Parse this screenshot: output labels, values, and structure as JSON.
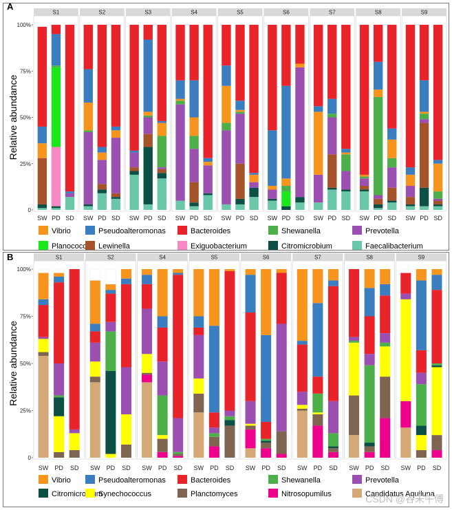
{
  "figure": {
    "watermark": "CSDN @谷未午傅"
  },
  "colors": {
    "Vibrio": "#f7941d",
    "Pseudoalteromonas": "#3b7ebf",
    "Bacteroides": "#e8232a",
    "Shewanella": "#4daf4a",
    "Prevotella": "#9b4fb0",
    "Planococcus": "#1be81b",
    "Lewinella": "#a5532a",
    "Exiguobacterium": "#f589c4",
    "Citromicrobium": "#0b4f45",
    "Faecalibacterium": "#6bc7a9",
    "Synechococcus": "#ffff00",
    "Planctomyces": "#7d6552",
    "Nitrosopumilus": "#ec008c",
    "Candidatus Aquiluna": "#d4a977",
    "Other": "#ffffff"
  },
  "chart_data": [
    {
      "type": "bar",
      "stacked": true,
      "panel_label": "A",
      "ylabel": "Relative  abundance",
      "yticks": [
        "0",
        "25%",
        "50%",
        "75%",
        "100%"
      ],
      "ylim": [
        0,
        100
      ],
      "facets": [
        "S1",
        "S2",
        "S3",
        "S4",
        "S5",
        "S6",
        "S7",
        "S8",
        "S9"
      ],
      "categories": [
        "SW",
        "PD",
        "SD"
      ],
      "legend": [
        [
          "Vibrio",
          "Pseudoalteromonas",
          "Bacteroides",
          "Shewanella",
          "Prevotella"
        ],
        [
          "Planococcus",
          "Lewinella",
          "Exiguobacterium",
          "Citromicrobium",
          "Faecalibacterium"
        ]
      ],
      "legend_placement": "bottom",
      "stack_order": [
        "Faecalibacterium",
        "Citromicrobium",
        "Exiguobacterium",
        "Lewinella",
        "Planococcus",
        "Prevotella",
        "Shewanella",
        "Vibrio",
        "Pseudoalteromonas",
        "Bacteroides"
      ],
      "bars": [
        {
          "facet": "S1",
          "sample": "SW",
          "values": {
            "Faecalibacterium": 1,
            "Citromicrobium": 2,
            "Lewinella": 25,
            "Vibrio": 8,
            "Pseudoalteromonas": 9,
            "Bacteroides": 54
          }
        },
        {
          "facet": "S1",
          "sample": "PD",
          "values": {
            "Faecalibacterium": 1,
            "Citromicrobium": 1,
            "Exiguobacterium": 32,
            "Planococcus": 43,
            "Shewanella": 1,
            "Pseudoalteromonas": 17,
            "Bacteroides": 5
          }
        },
        {
          "facet": "S1",
          "sample": "SD",
          "values": {
            "Faecalibacterium": 7,
            "Prevotella": 2,
            "Pseudoalteromonas": 1,
            "Bacteroides": 90
          }
        },
        {
          "facet": "S2",
          "sample": "SW",
          "values": {
            "Faecalibacterium": 2,
            "Citromicrobium": 1,
            "Vibrio": 15,
            "Prevotella": 39,
            "Shewanella": 1,
            "Pseudoalteromonas": 18,
            "Bacteroides": 24
          }
        },
        {
          "facet": "S2",
          "sample": "PD",
          "values": {
            "Faecalibacterium": 9,
            "Citromicrobium": 2,
            "Lewinella": 3,
            "Vibrio": 4,
            "Prevotella": 13,
            "Pseudoalteromonas": 3,
            "Bacteroides": 66
          }
        },
        {
          "facet": "S2",
          "sample": "SD",
          "values": {
            "Faecalibacterium": 6,
            "Citromicrobium": 1,
            "Lewinella": 2,
            "Vibrio": 4,
            "Prevotella": 30,
            "Pseudoalteromonas": 2,
            "Bacteroides": 55
          }
        },
        {
          "facet": "S3",
          "sample": "SW",
          "values": {
            "Faecalibacterium": 19,
            "Citromicrobium": 2,
            "Lewinella": 2,
            "Prevotella": 8,
            "Pseudoalteromonas": 1,
            "Bacteroides": 68
          }
        },
        {
          "facet": "S3",
          "sample": "PD",
          "values": {
            "Faecalibacterium": 3,
            "Citromicrobium": 31,
            "Lewinella": 7,
            "Vibrio": 2,
            "Prevotella": 9,
            "Shewanella": 1,
            "Pseudoalteromonas": 39,
            "Bacteroides": 8
          }
        },
        {
          "facet": "S3",
          "sample": "SD",
          "values": {
            "Faecalibacterium": 17,
            "Citromicrobium": 3,
            "Lewinella": 2,
            "Vibrio": 7,
            "Prevotella": 1,
            "Shewanella": 17,
            "Pseudoalteromonas": 1,
            "Bacteroides": 52
          }
        },
        {
          "facet": "S4",
          "sample": "SW",
          "values": {
            "Faecalibacterium": 5,
            "Vibrio": 1,
            "Prevotella": 52,
            "Shewanella": 2,
            "Pseudoalteromonas": 10,
            "Bacteroides": 30
          }
        },
        {
          "facet": "S4",
          "sample": "PD",
          "values": {
            "Faecalibacterium": 2,
            "Citromicrobium": 2,
            "Lewinella": 11,
            "Vibrio": 10,
            "Prevotella": 18,
            "Shewanella": 7,
            "Pseudoalteromonas": 20,
            "Bacteroides": 30
          }
        },
        {
          "facet": "S4",
          "sample": "SD",
          "values": {
            "Faecalibacterium": 8,
            "Citromicrobium": 1,
            "Vibrio": 2,
            "Prevotella": 15,
            "Pseudoalteromonas": 2,
            "Bacteroides": 72
          }
        },
        {
          "facet": "S5",
          "sample": "SW",
          "values": {
            "Faecalibacterium": 3,
            "Vibrio": 20,
            "Prevotella": 40,
            "Shewanella": 4,
            "Pseudoalteromonas": 11,
            "Bacteroides": 22
          }
        },
        {
          "facet": "S5",
          "sample": "PD",
          "values": {
            "Faecalibacterium": 3,
            "Citromicrobium": 3,
            "Lewinella": 19,
            "Vibrio": 1,
            "Prevotella": 27,
            "Shewanella": 1,
            "Pseudoalteromonas": 5,
            "Bacteroides": 41
          }
        },
        {
          "facet": "S5",
          "sample": "SD",
          "values": {
            "Faecalibacterium": 7,
            "Citromicrobium": 5,
            "Vibrio": 4,
            "Prevotella": 3,
            "Pseudoalteromonas": 1,
            "Bacteroides": 80
          }
        },
        {
          "facet": "S6",
          "sample": "SW",
          "values": {
            "Faecalibacterium": 5,
            "Citromicrobium": 1,
            "Vibrio": 2,
            "Prevotella": 5,
            "Pseudoalteromonas": 30,
            "Bacteroides": 57
          }
        },
        {
          "facet": "S6",
          "sample": "PD",
          "values": {
            "Citromicrobium": 2,
            "Planococcus": 8,
            "Vibrio": 4,
            "Shewanella": 3,
            "Pseudoalteromonas": 50,
            "Bacteroides": 33
          }
        },
        {
          "facet": "S6",
          "sample": "SD",
          "values": {
            "Faecalibacterium": 4,
            "Citromicrobium": 3,
            "Vibrio": 2,
            "Prevotella": 70,
            "Bacteroides": 21
          }
        },
        {
          "facet": "S7",
          "sample": "SW",
          "values": {
            "Faecalibacterium": 4,
            "Vibrio": 34,
            "Prevotella": 15,
            "Pseudoalteromonas": 3,
            "Bacteroides": 44
          }
        },
        {
          "facet": "S7",
          "sample": "PD",
          "values": {
            "Faecalibacterium": 11,
            "Citromicrobium": 1,
            "Lewinella": 18,
            "Prevotella": 20,
            "Shewanella": 2,
            "Pseudoalteromonas": 8,
            "Bacteroides": 40
          }
        },
        {
          "facet": "S7",
          "sample": "SD",
          "values": {
            "Faecalibacterium": 10,
            "Citromicrobium": 1,
            "Vibrio": 1,
            "Prevotella": 10,
            "Shewanella": 9,
            "Pseudoalteromonas": 2,
            "Bacteroides": 67
          }
        },
        {
          "facet": "S8",
          "sample": "SW",
          "values": {
            "Faecalibacterium": 10,
            "Citromicrobium": 1,
            "Lewinella": 2,
            "Vibrio": 1,
            "Prevotella": 4,
            "Shewanella": 1,
            "Bacteroides": 81
          }
        },
        {
          "facet": "S8",
          "sample": "PD",
          "values": {
            "Faecalibacterium": 1,
            "Citromicrobium": 2,
            "Lewinella": 3,
            "Vibrio": 4,
            "Prevotella": 2,
            "Shewanella": 53,
            "Pseudoalteromonas": 15,
            "Bacteroides": 20
          }
        },
        {
          "facet": "S8",
          "sample": "SD",
          "values": {
            "Faecalibacterium": 4,
            "Citromicrobium": 1,
            "Lewinella": 7,
            "Vibrio": 10,
            "Prevotella": 11,
            "Shewanella": 5,
            "Pseudoalteromonas": 6,
            "Bacteroides": 56
          }
        },
        {
          "facet": "S9",
          "sample": "SW",
          "values": {
            "Faecalibacterium": 2,
            "Citromicrobium": 1,
            "Lewinella": 4,
            "Vibrio": 6,
            "Prevotella": 6,
            "Pseudoalteromonas": 4,
            "Bacteroides": 77
          }
        },
        {
          "facet": "S9",
          "sample": "PD",
          "values": {
            "Faecalibacterium": 2,
            "Citromicrobium": 10,
            "Lewinella": 35,
            "Vibrio": 1,
            "Prevotella": 2,
            "Shewanella": 3,
            "Pseudoalteromonas": 17,
            "Bacteroides": 30
          }
        },
        {
          "facet": "S9",
          "sample": "SD",
          "values": {
            "Faecalibacterium": 2,
            "Citromicrobium": 1,
            "Lewinella": 2,
            "Vibrio": 15,
            "Prevotella": 1,
            "Shewanella": 4,
            "Pseudoalteromonas": 2,
            "Bacteroides": 73
          }
        }
      ]
    },
    {
      "type": "bar",
      "stacked": true,
      "panel_label": "B",
      "ylabel": "Relative  abundance",
      "yticks": [
        "0",
        "25%",
        "50%",
        "75%",
        "100%"
      ],
      "ylim": [
        0,
        100
      ],
      "facets": [
        "S1",
        "S2",
        "S4",
        "S5",
        "S6",
        "S7",
        "S8",
        "S9"
      ],
      "categories": [
        "SW",
        "PD",
        "SD"
      ],
      "legend": [
        [
          "Vibrio",
          "Pseudoalteromonas",
          "Bacteroides",
          "Shewanella",
          "Prevotella"
        ],
        [
          "Citromicrobium",
          "Synechococcus",
          "Planctomyces",
          "Nitrosopumilus",
          "Candidatus Aquiluna"
        ]
      ],
      "legend_placement": "bottom",
      "stack_order": [
        "Candidatus Aquiluna",
        "Nitrosopumilus",
        "Planctomyces",
        "Synechococcus",
        "Citromicrobium",
        "Shewanella",
        "Prevotella",
        "Bacteroides",
        "Pseudoalteromonas",
        "Vibrio"
      ],
      "bars": [
        {
          "facet": "S1",
          "sample": "SW",
          "values": {
            "Candidatus Aquiluna": 54,
            "Planctomyces": 2,
            "Synechococcus": 7,
            "Prevotella": 1,
            "Bacteroides": 17,
            "Pseudoalteromonas": 3,
            "Vibrio": 14
          }
        },
        {
          "facet": "S1",
          "sample": "PD",
          "values": {
            "Planctomyces": 3,
            "Synechococcus": 19,
            "Citromicrobium": 10,
            "Prevotella": 17,
            "Shewanella": 1,
            "Bacteroides": 43,
            "Pseudoalteromonas": 3,
            "Vibrio": 2
          }
        },
        {
          "facet": "S1",
          "sample": "SD",
          "values": {
            "Planctomyces": 4,
            "Synechococcus": 9,
            "Prevotella": 2,
            "Bacteroides": 85
          }
        },
        {
          "facet": "S2",
          "sample": "SW",
          "values": {
            "Candidatus Aquiluna": 40,
            "Planctomyces": 3,
            "Synechococcus": 8,
            "Prevotella": 10,
            "Bacteroides": 6,
            "Pseudoalteromonas": 4,
            "Vibrio": 23
          }
        },
        {
          "facet": "S2",
          "sample": "PD",
          "values": {
            "Synechococcus": 2,
            "Citromicrobium": 44,
            "Prevotella": 5,
            "Shewanella": 21,
            "Bacteroides": 15,
            "Pseudoalteromonas": 2,
            "Vibrio": 3
          }
        },
        {
          "facet": "S2",
          "sample": "SD",
          "values": {
            "Planctomyces": 7,
            "Synechococcus": 16,
            "Prevotella": 25,
            "Bacteroides": 44,
            "Pseudoalteromonas": 3,
            "Vibrio": 5
          }
        },
        {
          "facet": "S4",
          "sample": "SW",
          "values": {
            "Candidatus Aquiluna": 40,
            "Nitrosopumilus": 4,
            "Planctomyces": 1,
            "Synechococcus": 10,
            "Prevotella": 24,
            "Bacteroides": 13,
            "Pseudoalteromonas": 5,
            "Vibrio": 3
          }
        },
        {
          "facet": "S4",
          "sample": "PD",
          "values": {
            "Nitrosopumilus": 3,
            "Planctomyces": 7,
            "Synechococcus": 2,
            "Prevotella": 18,
            "Shewanella": 21,
            "Bacteroides": 18,
            "Pseudoalteromonas": 6,
            "Vibrio": 25
          }
        },
        {
          "facet": "S4",
          "sample": "SD",
          "values": {
            "Nitrosopumilus": 1,
            "Planctomyces": 1,
            "Prevotella": 18,
            "Shewanella": 1,
            "Bacteroides": 76,
            "Pseudoalteromonas": 1,
            "Vibrio": 2
          }
        },
        {
          "facet": "S5",
          "sample": "SW",
          "values": {
            "Candidatus Aquiluna": 24,
            "Planctomyces": 10,
            "Synechococcus": 8,
            "Prevotella": 23,
            "Bacteroides": 4,
            "Pseudoalteromonas": 6,
            "Vibrio": 25
          }
        },
        {
          "facet": "S5",
          "sample": "PD",
          "values": {
            "Nitrosopumilus": 6,
            "Planctomyces": 5,
            "Prevotella": 3,
            "Shewanella": 2,
            "Bacteroides": 8,
            "Pseudoalteromonas": 46,
            "Vibrio": 30
          }
        },
        {
          "facet": "S5",
          "sample": "SD",
          "values": {
            "Planctomyces": 17,
            "Citromicrobium": 3,
            "Prevotella": 3,
            "Shewanella": 2,
            "Bacteroides": 74,
            "Vibrio": 1
          }
        },
        {
          "facet": "S6",
          "sample": "SW",
          "values": {
            "Candidatus Aquiluna": 5,
            "Nitrosopumilus": 10,
            "Planctomyces": 2,
            "Synechococcus": 1,
            "Prevotella": 12,
            "Bacteroides": 47,
            "Pseudoalteromonas": 20,
            "Vibrio": 3
          }
        },
        {
          "facet": "S6",
          "sample": "PD",
          "values": {
            "Nitrosopumilus": 5,
            "Planctomyces": 3,
            "Citromicrobium": 1,
            "Shewanella": 1,
            "Bacteroides": 9,
            "Pseudoalteromonas": 46,
            "Vibrio": 35
          }
        },
        {
          "facet": "S6",
          "sample": "SD",
          "values": {
            "Nitrosopumilus": 2,
            "Planctomyces": 12,
            "Prevotella": 57,
            "Bacteroides": 27,
            "Vibrio": 2
          }
        },
        {
          "facet": "S7",
          "sample": "SW",
          "values": {
            "Candidatus Aquiluna": 25,
            "Planctomyces": 1,
            "Synechococcus": 2,
            "Prevotella": 7,
            "Bacteroides": 25,
            "Pseudoalteromonas": 2,
            "Vibrio": 38
          }
        },
        {
          "facet": "S7",
          "sample": "PD",
          "values": {
            "Nitrosopumilus": 17,
            "Planctomyces": 6,
            "Synechococcus": 1,
            "Shewanella": 10,
            "Bacteroides": 9,
            "Pseudoalteromonas": 39,
            "Vibrio": 18
          }
        },
        {
          "facet": "S7",
          "sample": "SD",
          "values": {
            "Nitrosopumilus": 3,
            "Planctomyces": 2,
            "Citromicrobium": 1,
            "Prevotella": 17,
            "Shewanella": 7,
            "Bacteroides": 61,
            "Pseudoalteromonas": 3,
            "Vibrio": 6
          }
        },
        {
          "facet": "S8",
          "sample": "SW",
          "values": {
            "Candidatus Aquiluna": 12,
            "Planctomyces": 21,
            "Synechococcus": 28,
            "Prevotella": 2,
            "Shewanella": 1,
            "Bacteroides": 36
          }
        },
        {
          "facet": "S8",
          "sample": "PD",
          "values": {
            "Nitrosopumilus": 3,
            "Planctomyces": 3,
            "Citromicrobium": 2,
            "Prevotella": 6,
            "Shewanella": 41,
            "Bacteroides": 20,
            "Pseudoalteromonas": 15,
            "Vibrio": 10
          }
        },
        {
          "facet": "S8",
          "sample": "SD",
          "values": {
            "Nitrosopumilus": 21,
            "Planctomyces": 22,
            "Synechococcus": 16,
            "Prevotella": 5,
            "Shewanella": 2,
            "Bacteroides": 20,
            "Pseudoalteromonas": 6,
            "Vibrio": 8
          }
        },
        {
          "facet": "S9",
          "sample": "SW",
          "values": {
            "Candidatus Aquiluna": 16,
            "Nitrosopumilus": 14,
            "Synechococcus": 54,
            "Prevotella": 3,
            "Bacteroides": 11
          }
        },
        {
          "facet": "S9",
          "sample": "PD",
          "values": {
            "Planctomyces": 4,
            "Synechococcus": 8,
            "Citromicrobium": 5,
            "Prevotella": 6,
            "Shewanella": 22,
            "Bacteroides": 12,
            "Pseudoalteromonas": 37,
            "Vibrio": 6
          }
        },
        {
          "facet": "S9",
          "sample": "SD",
          "values": {
            "Nitrosopumilus": 4,
            "Planctomyces": 8,
            "Synechococcus": 36,
            "Citromicrobium": 1,
            "Shewanella": 1,
            "Bacteroides": 39,
            "Pseudoalteromonas": 8,
            "Vibrio": 3
          }
        }
      ]
    }
  ]
}
